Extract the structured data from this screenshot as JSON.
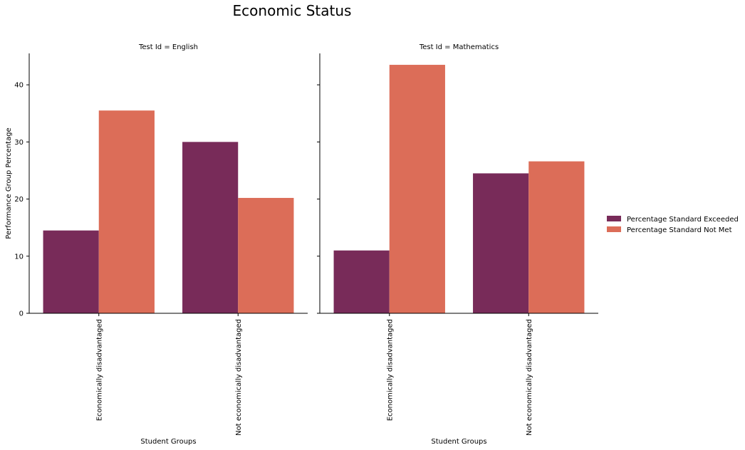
{
  "title": "Economic Status",
  "legend": {
    "placement": "right",
    "items": [
      {
        "label": "Percentage Standard Exceeded",
        "color": "#782b59"
      },
      {
        "label": "Percentage Standard Not Met",
        "color": "#dc6d58"
      }
    ]
  },
  "y_ticks": [
    "0",
    "10",
    "20",
    "30",
    "40"
  ],
  "chart_data": [
    {
      "type": "bar",
      "title": "Test Id = English",
      "xlabel": "Student Groups",
      "ylabel": "Performance Group Percentage",
      "categories": [
        "Economically disadvantaged",
        "Not economically disadvantaged"
      ],
      "series": [
        {
          "name": "Percentage Standard Exceeded",
          "values": [
            14.5,
            30.0
          ]
        },
        {
          "name": "Percentage Standard Not Met",
          "values": [
            35.5,
            20.2
          ]
        }
      ],
      "ylim": [
        0,
        45.5
      ],
      "grid": false
    },
    {
      "type": "bar",
      "title": "Test Id = Mathematics",
      "xlabel": "Student Groups",
      "ylabel": "",
      "categories": [
        "Economically disadvantaged",
        "Not economically disadvantaged"
      ],
      "series": [
        {
          "name": "Percentage Standard Exceeded",
          "values": [
            11.0,
            24.5
          ]
        },
        {
          "name": "Percentage Standard Not Met",
          "values": [
            43.5,
            26.6
          ]
        }
      ],
      "ylim": [
        0,
        45.5
      ],
      "grid": false
    }
  ]
}
